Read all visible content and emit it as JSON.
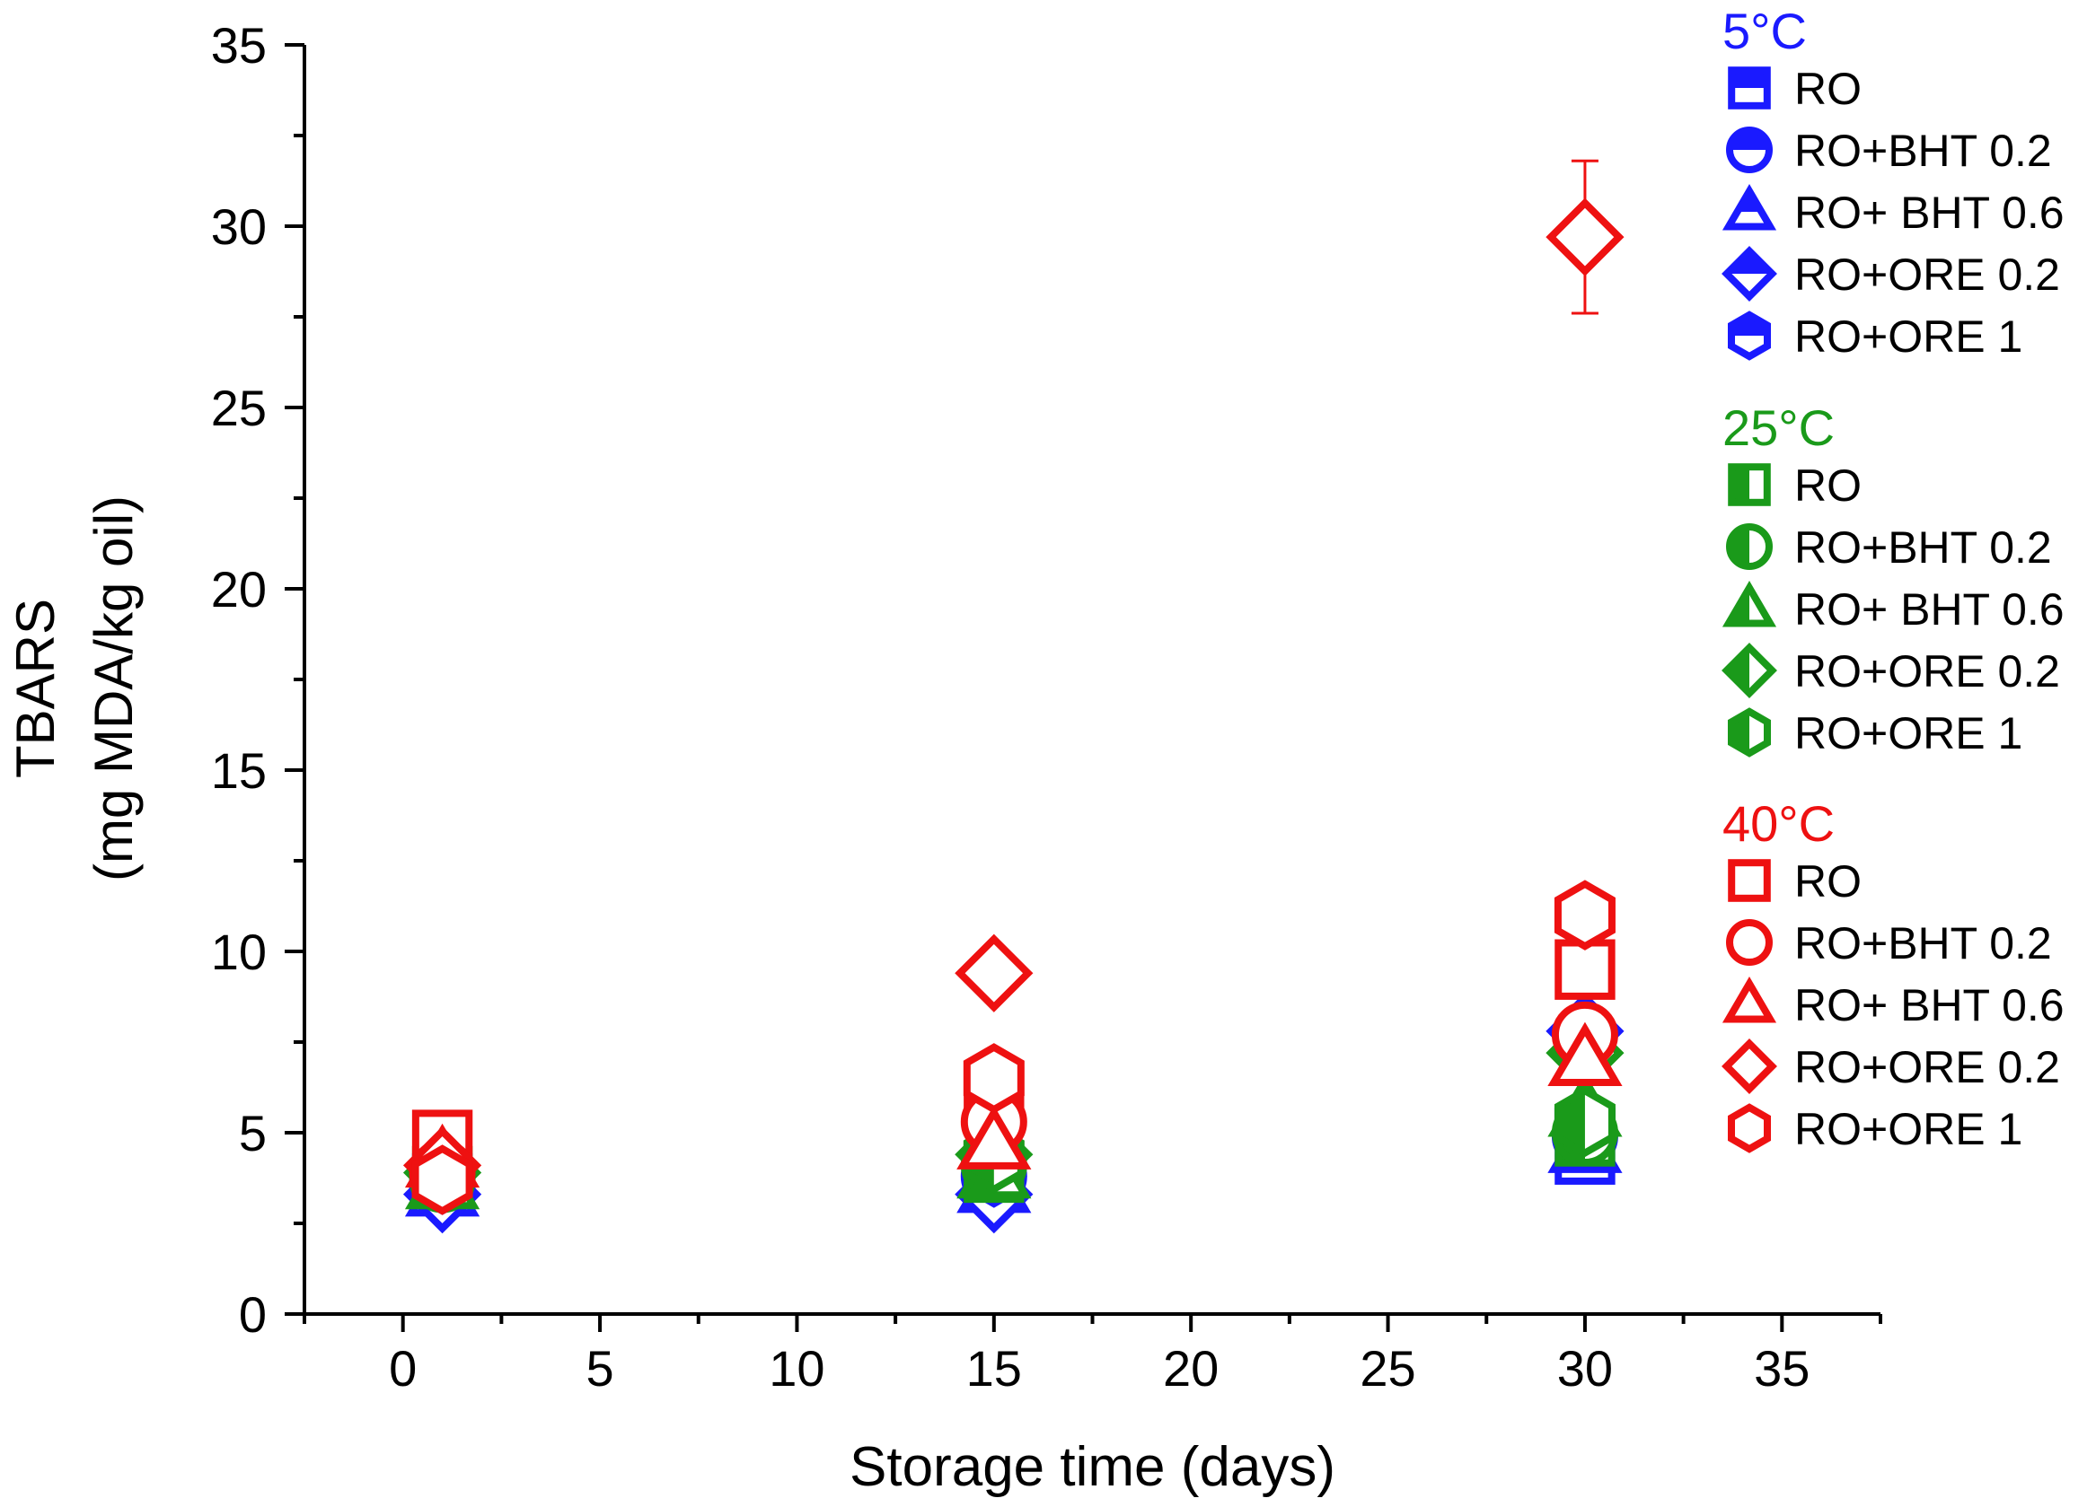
{
  "chart_data": {
    "type": "scatter",
    "title": "",
    "xlabel": "Storage time (days)",
    "ylabel_line1": "TBARS",
    "ylabel_line2": "(mg MDA/kg oil)",
    "xlim": [
      -2.5,
      37.5
    ],
    "ylim": [
      0,
      35
    ],
    "xticks": [
      0,
      5,
      10,
      15,
      20,
      25,
      30,
      35
    ],
    "xtick_labels": [
      "0",
      "5",
      "10",
      "15",
      "20",
      "25",
      "30",
      "35"
    ],
    "yticks": [
      0,
      5,
      10,
      15,
      20,
      25,
      30,
      35
    ],
    "ytick_labels": [
      "0",
      "5",
      "10",
      "15",
      "20",
      "25",
      "30",
      "35"
    ],
    "grid": false,
    "legend_position": "right",
    "temperature_groups": [
      {
        "label": "5°C",
        "color": "#1a1aff",
        "fill_style": "half-top",
        "series": [
          {
            "name": "RO",
            "marker": "square",
            "x": [
              1,
              15,
              30
            ],
            "y": [
              3.6,
              3.7,
              4.4
            ],
            "err": [
              0.2,
              0.2,
              0.3
            ]
          },
          {
            "name": "RO+BHT 0.2",
            "marker": "circle",
            "x": [
              1,
              15,
              30
            ],
            "y": [
              3.5,
              3.8,
              4.9
            ],
            "err": [
              0.2,
              0.2,
              0.3
            ]
          },
          {
            "name": "RO+ BHT 0.6",
            "marker": "triangle",
            "x": [
              1,
              15,
              30
            ],
            "y": [
              3.4,
              3.5,
              4.6
            ],
            "err": [
              0.2,
              0.2,
              0.3
            ]
          },
          {
            "name": "RO+ORE 0.2",
            "marker": "diamond",
            "x": [
              1,
              15,
              30
            ],
            "y": [
              3.3,
              3.3,
              7.8
            ],
            "err": [
              0.2,
              0.2,
              0.3
            ]
          },
          {
            "name": "RO+ORE 1",
            "marker": "hexagon",
            "x": [
              1,
              15,
              30
            ],
            "y": [
              3.7,
              3.9,
              5.2
            ],
            "err": [
              0.2,
              0.2,
              0.3
            ]
          }
        ]
      },
      {
        "label": "25°C",
        "color": "#1a9a1a",
        "fill_style": "half-left",
        "series": [
          {
            "name": "RO",
            "marker": "square",
            "x": [
              1,
              15,
              30
            ],
            "y": [
              3.8,
              3.9,
              4.9
            ],
            "err": [
              0.2,
              0.2,
              0.3
            ]
          },
          {
            "name": "RO+BHT 0.2",
            "marker": "circle",
            "x": [
              1,
              15,
              30
            ],
            "y": [
              3.7,
              4.1,
              5.0
            ],
            "err": [
              0.2,
              0.2,
              0.3
            ]
          },
          {
            "name": "RO+ BHT 0.6",
            "marker": "triangle",
            "x": [
              1,
              15,
              30
            ],
            "y": [
              3.6,
              3.9,
              5.6
            ],
            "err": [
              0.2,
              0.2,
              0.3
            ]
          },
          {
            "name": "RO+ORE 0.2",
            "marker": "diamond",
            "x": [
              1,
              15,
              30
            ],
            "y": [
              3.9,
              4.4,
              7.2
            ],
            "err": [
              0.2,
              0.2,
              0.3
            ]
          },
          {
            "name": "RO+ORE 1",
            "marker": "hexagon",
            "x": [
              1,
              15,
              30
            ],
            "y": [
              3.8,
              4.3,
              5.3
            ],
            "err": [
              0.2,
              0.2,
              0.3
            ]
          }
        ]
      },
      {
        "label": "40°C",
        "color": "#ee1111",
        "fill_style": "open",
        "series": [
          {
            "name": "RO",
            "marker": "square",
            "x": [
              1,
              15,
              30
            ],
            "y": [
              4.8,
              6.0,
              9.5
            ],
            "err": [
              0.2,
              0.3,
              0.4
            ]
          },
          {
            "name": "RO+BHT 0.2",
            "marker": "circle",
            "x": [
              1,
              15,
              30
            ],
            "y": [
              3.9,
              5.3,
              7.7
            ],
            "err": [
              0.2,
              0.6,
              0.3
            ]
          },
          {
            "name": "RO+ BHT 0.6",
            "marker": "triangle",
            "x": [
              1,
              15,
              30
            ],
            "y": [
              4.2,
              4.7,
              7.0
            ],
            "err": [
              0.2,
              0.3,
              0.3
            ]
          },
          {
            "name": "RO+ORE 0.2",
            "marker": "diamond",
            "x": [
              1,
              15,
              30
            ],
            "y": [
              4.1,
              9.4,
              29.7
            ],
            "err": [
              0.2,
              0.4,
              2.1
            ]
          },
          {
            "name": "RO+ORE 1",
            "marker": "hexagon",
            "x": [
              1,
              15,
              30
            ],
            "y": [
              3.7,
              6.5,
              11.0
            ],
            "err": [
              0.2,
              0.3,
              0.3
            ]
          }
        ]
      }
    ]
  }
}
